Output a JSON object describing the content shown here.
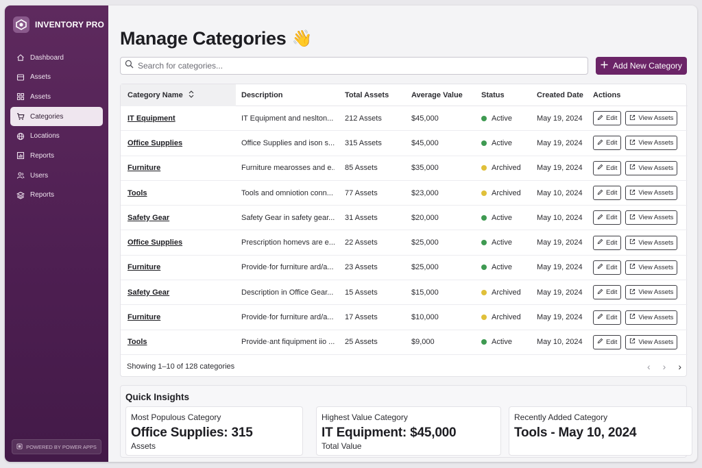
{
  "app": {
    "brand": "INVENTORY PRO",
    "powered_by": "POWERED BY POWER APPS"
  },
  "sidebar": {
    "items": [
      {
        "label": "Dashboard",
        "icon": "home-icon"
      },
      {
        "label": "Assets",
        "icon": "box-icon"
      },
      {
        "label": "Assets",
        "icon": "grid-icon"
      },
      {
        "label": "Categories",
        "icon": "cart-icon",
        "active": true
      },
      {
        "label": "Locations",
        "icon": "globe-icon"
      },
      {
        "label": "Reports",
        "icon": "bar-chart-icon"
      },
      {
        "label": "Users",
        "icon": "users-icon"
      },
      {
        "label": "Reports",
        "icon": "layers-icon"
      }
    ]
  },
  "page": {
    "title": "Manage Categories",
    "emoji": "👋"
  },
  "search": {
    "placeholder": "Search for categories..."
  },
  "toolbar": {
    "add_label": "Add New Category"
  },
  "table": {
    "headers": {
      "name": "Category Name",
      "description": "Description",
      "total": "Total Assets",
      "average": "Average Value",
      "status": "Status",
      "created": "Created Date",
      "actions": "Actions"
    },
    "edit_label": "Edit",
    "view_label": "View Assets",
    "status_colors": {
      "Active": "#3f9a52",
      "Archived": "#e0c03a"
    },
    "rows": [
      {
        "name": "IT Equipment",
        "description": "IT Equipment and neslton...",
        "total": "212 Assets",
        "average": "$45,000",
        "status": "Active",
        "created": "May 19, 2024"
      },
      {
        "name": "Office Supplies",
        "description": "Office Supplies and ison s...",
        "total": "315 Assets",
        "average": "$45,000",
        "status": "Active",
        "created": "May 19, 2024"
      },
      {
        "name": "Furniture",
        "description": "Furniture mearosses and e...",
        "total": "85 Assets",
        "average": "$35,000",
        "status": "Archived",
        "created": "May 19, 2024"
      },
      {
        "name": "Tools",
        "description": "Tools and omniotion conn...",
        "total": "77 Assets",
        "average": "$23,000",
        "status": "Archived",
        "created": "May 10, 2024"
      },
      {
        "name": "Safety Gear",
        "description": "Safety Gear in safety gear...",
        "total": "31 Assets",
        "average": "$20,000",
        "status": "Active",
        "created": "May 10, 2024"
      },
      {
        "name": "Office Supplies",
        "description": "Prescription homevs are e...",
        "total": "22 Assets",
        "average": "$25,000",
        "status": "Active",
        "created": "May 19, 2024"
      },
      {
        "name": "Furniture",
        "description": "Provide·for furniture ard/a...",
        "total": "23 Assets",
        "average": "$25,000",
        "status": "Active",
        "created": "May 19, 2024"
      },
      {
        "name": "Safety Gear",
        "description": "Description in Office Gear...",
        "total": "15 Assets",
        "average": "$15,000",
        "status": "Archived",
        "created": "May 19, 2024"
      },
      {
        "name": "Furniture",
        "description": "Provide·for furniture ard/a...",
        "total": "17 Assets",
        "average": "$10,000",
        "status": "Archived",
        "created": "May 19, 2024"
      },
      {
        "name": "Tools",
        "description": "Provide·ant fiquipment iio ...",
        "total": "25 Assets",
        "average": "$9,000",
        "status": "Active",
        "created": "May 10, 2024"
      }
    ],
    "footer": {
      "showing": "Showing 1–10 of 128 categories"
    }
  },
  "insights": {
    "title": "Quick Insights",
    "cards": [
      {
        "label": "Most Populous Category",
        "value": "Office Supplies: 315",
        "sub": "Assets"
      },
      {
        "label": "Highest Value Category",
        "value": "IT Equipment: $45,000",
        "sub": "Total Value"
      },
      {
        "label": "Recently Added Category",
        "value": "Tools - May 10, 2024",
        "sub": ""
      }
    ]
  }
}
